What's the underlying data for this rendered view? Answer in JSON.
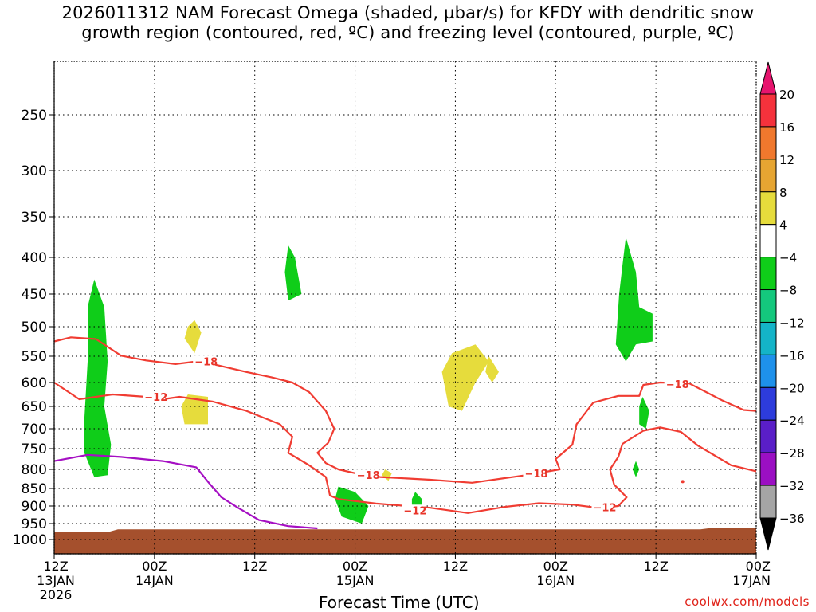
{
  "title": {
    "line1": "2026011312 NAM Forecast Omega (shaded, µbar/s) for KFDY with dendritic snow",
    "line2": "growth region (contoured, red, ºC) and freezing level (contoured, purple, ºC)"
  },
  "footer": "coolwx.com/models",
  "chart_data": {
    "type": "time-height cross section",
    "xlabel": "Forecast Time (UTC)",
    "ylabel": "",
    "y_scale": "pressure (inverted)",
    "ylim": [
      1000,
      200
    ],
    "y_ticks": [
      250,
      300,
      350,
      400,
      450,
      500,
      550,
      600,
      650,
      700,
      750,
      800,
      850,
      900,
      950,
      1000
    ],
    "x_ticks": [
      {
        "hour": 0,
        "lines": [
          "12Z",
          "13JAN",
          "2026"
        ]
      },
      {
        "hour": 12,
        "lines": [
          "00Z",
          "14JAN"
        ]
      },
      {
        "hour": 24,
        "lines": [
          "12Z"
        ]
      },
      {
        "hour": 36,
        "lines": [
          "00Z",
          "15JAN"
        ]
      },
      {
        "hour": 48,
        "lines": [
          "12Z"
        ]
      },
      {
        "hour": 60,
        "lines": [
          "00Z",
          "16JAN"
        ]
      },
      {
        "hour": 72,
        "lines": [
          "12Z"
        ]
      },
      {
        "hour": 84,
        "lines": [
          "00Z",
          "17JAN"
        ]
      }
    ],
    "grid": "dotted horizontal at pressure ticks, dotted vertical at time ticks",
    "colorbar": {
      "labels": [
        "20",
        "16",
        "12",
        "8",
        "4",
        "−4",
        "−8",
        "−12",
        "−16",
        "−20",
        "−24",
        "−28",
        "−32",
        "−36"
      ],
      "colors": [
        "#f0144e",
        "#f5323c",
        "#f0782d",
        "#e6a532",
        "#e6dc3c",
        "#ffffff",
        "#0fcd19",
        "#14c87d",
        "#14b4c8",
        "#1e91eb",
        "#2d3cdc",
        "#5a1ec8",
        "#9b0fc3",
        "#a5a5a5"
      ],
      "top_arrow_color": "#e6146e",
      "bottom_arrow_color": "#000000"
    },
    "contour_labels": {
      "dgz_minus18": "−18",
      "dgz_minus12": "−12"
    },
    "series": [
      {
        "color": "#f03c32",
        "label": "−18",
        "points": [
          [
            0,
            525
          ],
          [
            2.0,
            518
          ],
          [
            5.0,
            521
          ],
          [
            8.0,
            549
          ],
          [
            11.0,
            558
          ],
          [
            14.5,
            565
          ],
          [
            17.0,
            560
          ],
          [
            19.5,
            567
          ],
          [
            23.0,
            580
          ],
          [
            26.0,
            590
          ],
          [
            28.5,
            600
          ],
          [
            30.5,
            620
          ],
          [
            32.5,
            660
          ],
          [
            33.5,
            700
          ],
          [
            32.8,
            735
          ],
          [
            31.5,
            760
          ],
          [
            32.5,
            785
          ],
          [
            34.0,
            800
          ],
          [
            36.0,
            810
          ],
          [
            39.0,
            820
          ],
          [
            45.0,
            827
          ],
          [
            50.0,
            835
          ],
          [
            56.5,
            815
          ],
          [
            60.5,
            800
          ],
          [
            60.0,
            775
          ],
          [
            62.0,
            740
          ],
          [
            62.5,
            690
          ],
          [
            64.5,
            642
          ],
          [
            67.5,
            628
          ],
          [
            70.0,
            628
          ],
          [
            70.5,
            605
          ],
          [
            72.5,
            600
          ],
          [
            76.0,
            602
          ],
          [
            80.0,
            638
          ],
          [
            82.5,
            658
          ],
          [
            84.0,
            660
          ]
        ]
      },
      {
        "color": "#f03c32",
        "label": "−12",
        "points": [
          [
            0,
            600
          ],
          [
            3.0,
            635
          ],
          [
            7.0,
            625
          ],
          [
            11.0,
            630
          ],
          [
            13.0,
            635
          ],
          [
            15.0,
            630
          ],
          [
            19.0,
            640
          ],
          [
            23.0,
            660
          ],
          [
            27.0,
            690
          ],
          [
            28.5,
            720
          ],
          [
            28.0,
            760
          ],
          [
            30.5,
            790
          ],
          [
            32.5,
            820
          ],
          [
            33.0,
            870
          ],
          [
            34.0,
            880
          ],
          [
            38.5,
            893
          ],
          [
            45.0,
            905
          ],
          [
            49.5,
            920
          ],
          [
            54.0,
            902
          ],
          [
            58.0,
            892
          ],
          [
            62.0,
            896
          ],
          [
            65.0,
            905
          ],
          [
            67.5,
            900
          ],
          [
            68.5,
            875
          ],
          [
            67.0,
            840
          ],
          [
            66.5,
            800
          ],
          [
            67.5,
            770
          ],
          [
            68.0,
            738
          ],
          [
            70.5,
            705
          ],
          [
            72.5,
            697
          ],
          [
            75.0,
            708
          ],
          [
            77.0,
            742
          ],
          [
            81.0,
            790
          ],
          [
            84.0,
            805
          ]
        ]
      },
      {
        "color": "#a50fc3",
        "label": "freezing level",
        "points": [
          [
            0,
            780
          ],
          [
            4.0,
            765
          ],
          [
            8.0,
            770
          ],
          [
            13.0,
            780
          ],
          [
            17.0,
            795
          ],
          [
            18.5,
            835
          ],
          [
            20.0,
            875
          ],
          [
            22.0,
            905
          ],
          [
            24.5,
            940
          ],
          [
            28.0,
            958
          ],
          [
            31.5,
            965
          ]
        ]
      }
    ],
    "omega_regions": [
      {
        "value_range": "-4 to -8",
        "color": "#0fcd19",
        "note": "upward motion (green)"
      },
      {
        "value_range": "4 to 8",
        "color": "#e6dc3c",
        "note": "downward motion (yellow)"
      }
    ],
    "ground": {
      "color": "#a5502d"
    }
  }
}
